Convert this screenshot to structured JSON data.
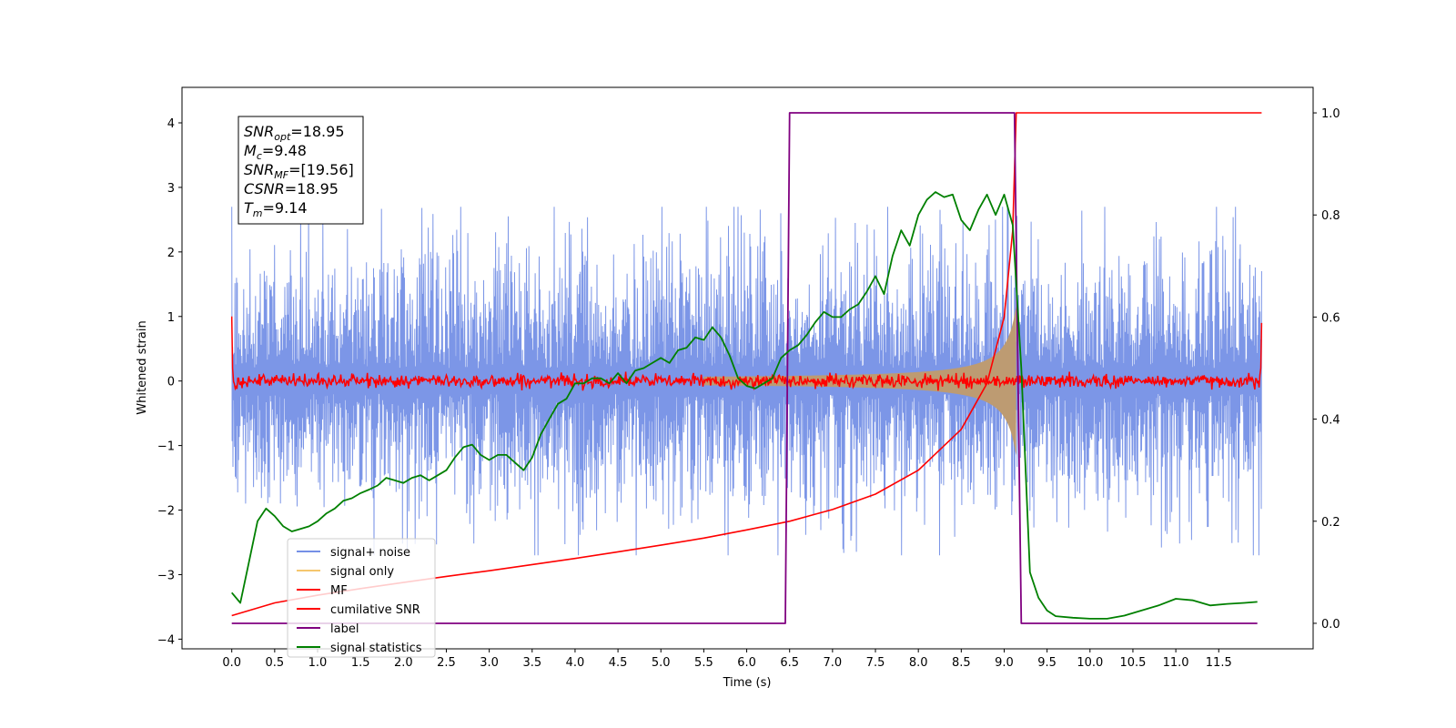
{
  "chart_data": {
    "type": "line",
    "xlabel": "Time (s)",
    "ylabel": "Whitened strain",
    "xlim": [
      -0.58,
      12.6
    ],
    "ylim": [
      -4.15,
      4.55
    ],
    "y2lim": [
      -0.05,
      1.05
    ],
    "x_ticks": [
      "0.0",
      "0.5",
      "1.0",
      "1.5",
      "2.0",
      "2.5",
      "3.0",
      "3.5",
      "4.0",
      "4.5",
      "5.0",
      "5.5",
      "6.0",
      "6.5",
      "7.0",
      "7.5",
      "8.0",
      "8.5",
      "9.0",
      "9.5",
      "10.0",
      "10.5",
      "11.0",
      "11.5"
    ],
    "y_ticks": [
      "4",
      "3",
      "2",
      "1",
      "0",
      "−1",
      "−2",
      "−3",
      "−4"
    ],
    "y2_ticks": [
      "1.0",
      "0.8",
      "0.6",
      "0.4",
      "0.2",
      "0.0"
    ],
    "grid": false,
    "legend_position": "lower-left",
    "annotation": {
      "lines": [
        {
          "main": "SNR",
          "sub": "opt",
          "value": "=18.95"
        },
        {
          "main": "M",
          "sub": "c",
          "value": "=9.48"
        },
        {
          "main": "SNR",
          "sub": "MF",
          "value": "=[19.56]"
        },
        {
          "main": "CSNR",
          "sub": "",
          "value": "=18.95"
        },
        {
          "main": "T",
          "sub": "m",
          "value": "=9.14"
        }
      ]
    },
    "series": [
      {
        "name": "signal+ noise",
        "color": "#7590e6",
        "style": "noise",
        "x_range": [
          0,
          12.0
        ],
        "amplitude": 1.0,
        "envelope": [
          -2.5,
          2.5
        ]
      },
      {
        "name": "signal only",
        "color": "#f5c66e",
        "style": "chirp_envelope",
        "merger_time": 9.14,
        "peak_amplitude": 1.15,
        "axis": "left"
      },
      {
        "name": "MF",
        "color": "#ff0000",
        "style": "noise_low",
        "x_range": [
          0,
          12.0
        ],
        "amplitude": 0.05,
        "edge_values": [
          1.0,
          0.9
        ]
      },
      {
        "name": "cumilative SNR",
        "color": "#ff0000",
        "axis": "right",
        "x": [
          0.0,
          0.5,
          1.0,
          1.5,
          2.0,
          2.5,
          3.0,
          3.5,
          4.0,
          4.5,
          5.0,
          5.5,
          6.0,
          6.5,
          7.0,
          7.5,
          8.0,
          8.5,
          8.8,
          9.0,
          9.1,
          9.14,
          9.2,
          11.5,
          12.0
        ],
        "y": [
          0.015,
          0.04,
          0.055,
          0.068,
          0.08,
          0.092,
          0.103,
          0.115,
          0.127,
          0.14,
          0.153,
          0.167,
          0.183,
          0.2,
          0.223,
          0.253,
          0.3,
          0.38,
          0.47,
          0.6,
          0.77,
          1.0,
          1.0,
          1.0,
          1.0
        ]
      },
      {
        "name": "label",
        "color": "#800080",
        "axis": "right",
        "x": [
          0.0,
          6.45,
          6.5,
          9.12,
          9.2,
          11.95
        ],
        "y": [
          0.0,
          0.0,
          1.0,
          1.0,
          0.0,
          0.0
        ]
      },
      {
        "name": "signal statistics",
        "color": "#008000",
        "axis": "right",
        "x": [
          0.0,
          0.1,
          0.2,
          0.3,
          0.4,
          0.5,
          0.6,
          0.7,
          0.8,
          0.9,
          1.0,
          1.1,
          1.2,
          1.3,
          1.4,
          1.5,
          1.6,
          1.7,
          1.8,
          1.9,
          2.0,
          2.1,
          2.2,
          2.3,
          2.4,
          2.5,
          2.6,
          2.7,
          2.8,
          2.9,
          3.0,
          3.1,
          3.2,
          3.3,
          3.4,
          3.5,
          3.6,
          3.7,
          3.8,
          3.9,
          4.0,
          4.1,
          4.2,
          4.3,
          4.4,
          4.5,
          4.6,
          4.7,
          4.8,
          4.9,
          5.0,
          5.1,
          5.2,
          5.3,
          5.4,
          5.5,
          5.6,
          5.7,
          5.8,
          5.9,
          6.0,
          6.1,
          6.2,
          6.3,
          6.4,
          6.5,
          6.6,
          6.7,
          6.8,
          6.9,
          7.0,
          7.1,
          7.2,
          7.3,
          7.4,
          7.5,
          7.6,
          7.7,
          7.8,
          7.9,
          8.0,
          8.1,
          8.2,
          8.3,
          8.4,
          8.5,
          8.6,
          8.7,
          8.8,
          8.9,
          9.0,
          9.1,
          9.2,
          9.3,
          9.4,
          9.5,
          9.6,
          9.8,
          10.0,
          10.2,
          10.4,
          10.6,
          10.8,
          11.0,
          11.2,
          11.4,
          11.6,
          11.8,
          11.95
        ],
        "y": [
          0.06,
          0.04,
          0.12,
          0.2,
          0.225,
          0.21,
          0.19,
          0.18,
          0.185,
          0.19,
          0.2,
          0.215,
          0.225,
          0.24,
          0.245,
          0.255,
          0.262,
          0.27,
          0.285,
          0.28,
          0.275,
          0.285,
          0.29,
          0.28,
          0.29,
          0.3,
          0.325,
          0.345,
          0.35,
          0.33,
          0.32,
          0.33,
          0.33,
          0.315,
          0.3,
          0.325,
          0.37,
          0.4,
          0.43,
          0.44,
          0.47,
          0.47,
          0.48,
          0.48,
          0.47,
          0.49,
          0.47,
          0.495,
          0.5,
          0.51,
          0.52,
          0.51,
          0.535,
          0.54,
          0.56,
          0.555,
          0.58,
          0.56,
          0.525,
          0.48,
          0.465,
          0.46,
          0.47,
          0.48,
          0.52,
          0.535,
          0.545,
          0.565,
          0.59,
          0.61,
          0.6,
          0.6,
          0.615,
          0.625,
          0.65,
          0.68,
          0.645,
          0.72,
          0.77,
          0.74,
          0.8,
          0.83,
          0.845,
          0.835,
          0.84,
          0.79,
          0.77,
          0.81,
          0.84,
          0.8,
          0.84,
          0.78,
          0.5,
          0.1,
          0.05,
          0.025,
          0.014,
          0.011,
          0.009,
          0.009,
          0.015,
          0.025,
          0.035,
          0.048,
          0.045,
          0.035,
          0.038,
          0.04,
          0.042
        ]
      }
    ]
  }
}
